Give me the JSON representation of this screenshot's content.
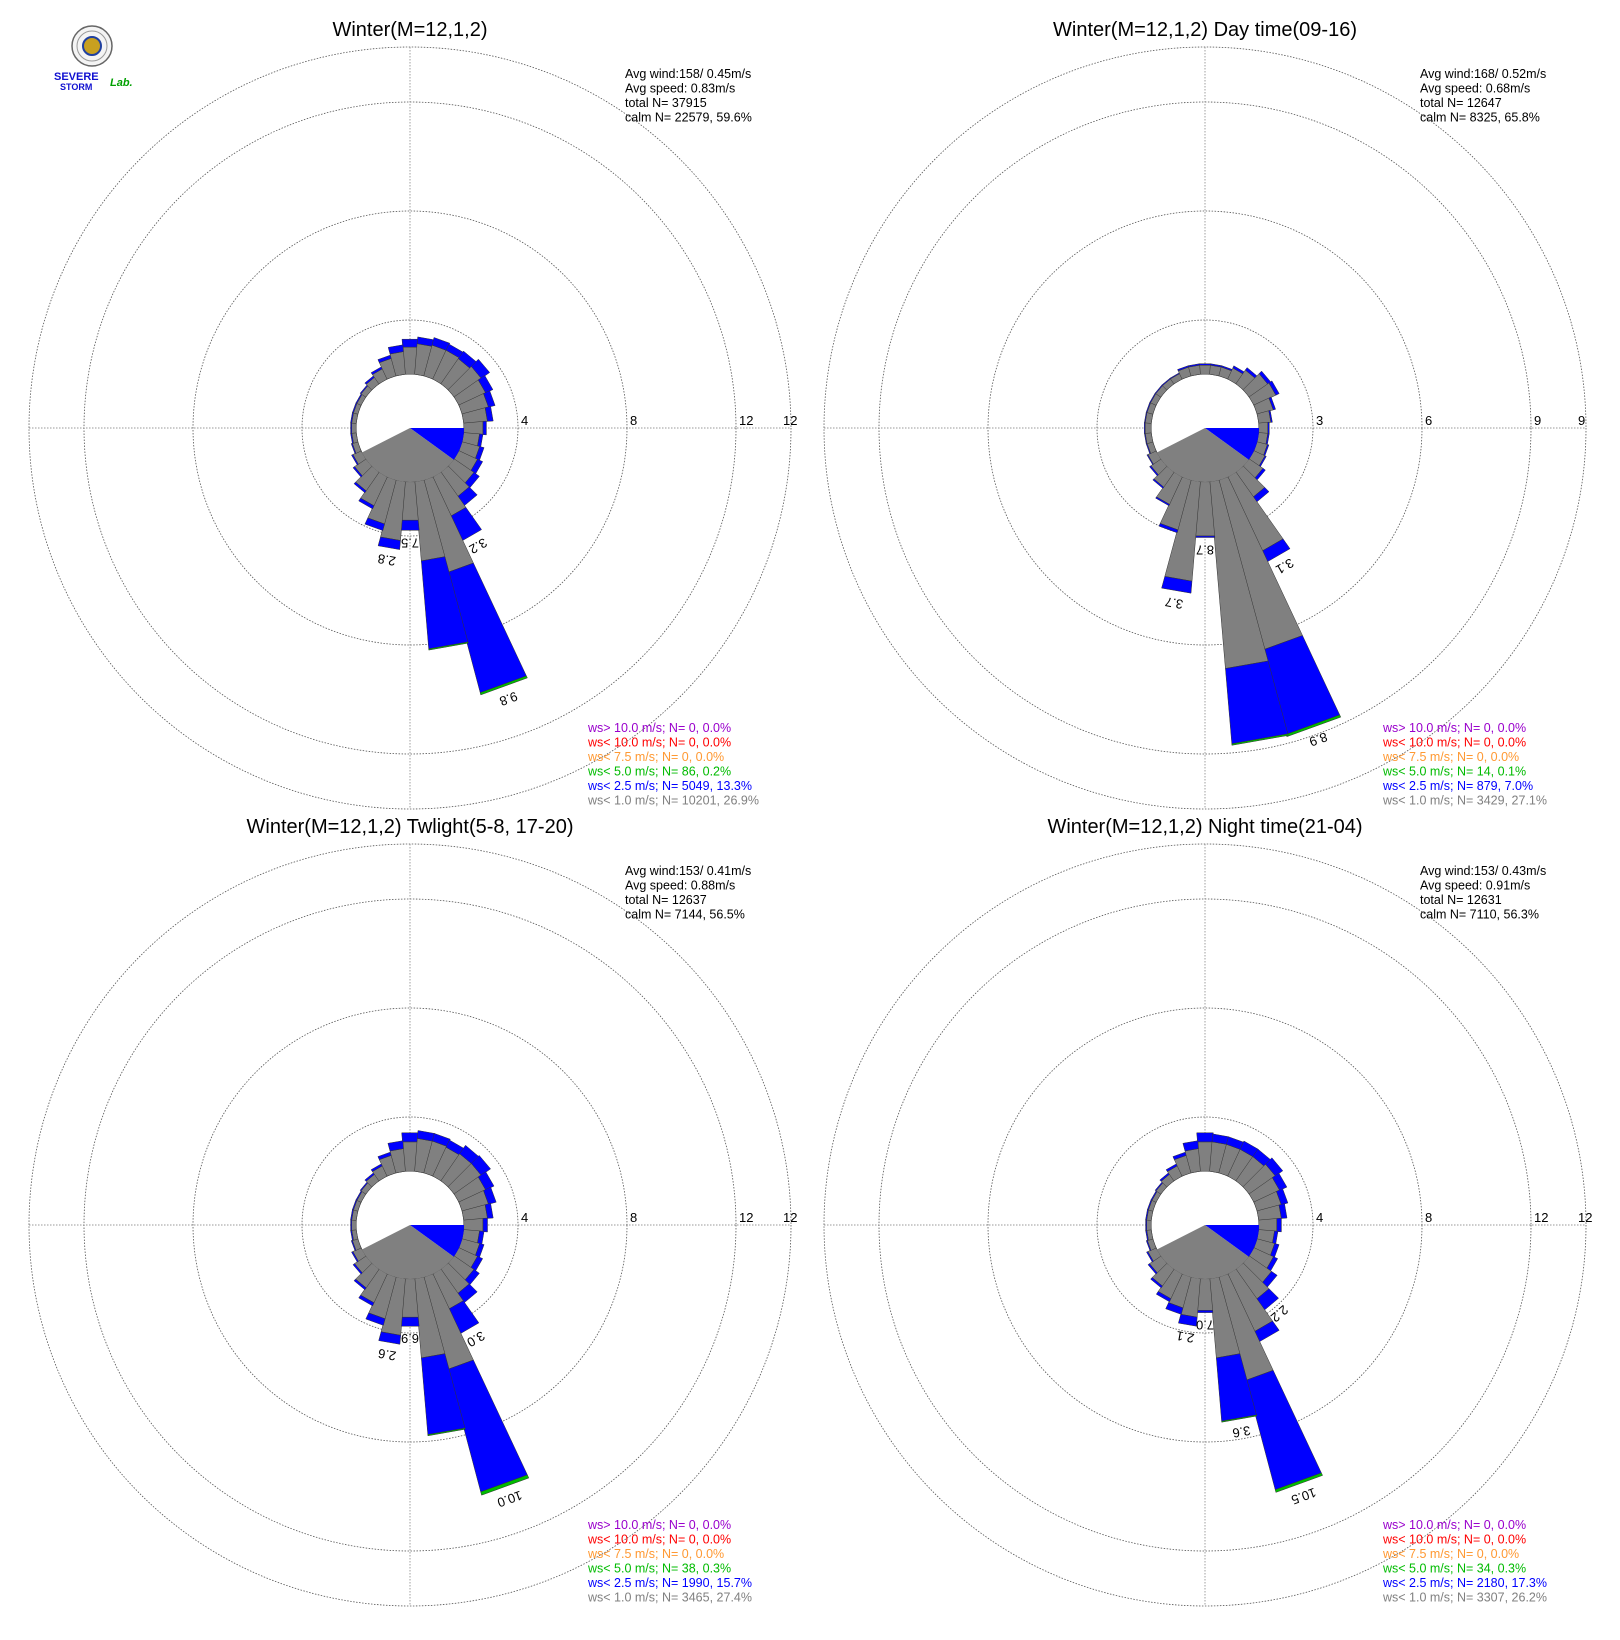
{
  "logo": {
    "text_severe": "SEVERE",
    "text_storm": "STORM",
    "text_lab": "Lab."
  },
  "colors": {
    "ws_gt_10": "#9900cc",
    "ws_lt_10": "#ff0000",
    "ws_lt_7_5": "#ff9933",
    "ws_lt_5": "#00bb00",
    "ws_lt_2_5": "#0000ff",
    "ws_lt_1": "#808080"
  },
  "chart_data": [
    {
      "type": "wind-rose",
      "title": "Winter(M=12,1,2)",
      "rings": [
        "4",
        "8",
        "12"
      ],
      "rmax": 12,
      "stats": [
        "Avg wind:158/ 0.45m/s",
        "Avg speed: 0.83m/s",
        "total N=      37915",
        "calm N=  22579,  59.6%"
      ],
      "legend": [
        "ws> 10.0 m/s; N=      0,  0.0%",
        "ws< 10.0 m/s; N=      0,  0.0%",
        "ws<  7.5 m/s; N=      0,  0.0%",
        "ws<  5.0 m/s; N=     86,  0.2%",
        "ws<  2.5 m/s; N=   5049, 13.3%",
        "ws<  1.0 m/s; N=  10201, 26.9%"
      ],
      "directions_deg": [
        0,
        10,
        20,
        30,
        40,
        50,
        60,
        70,
        80,
        90,
        100,
        110,
        120,
        130,
        140,
        150,
        160,
        170,
        180,
        190,
        200,
        210,
        220,
        230,
        240,
        250,
        260,
        270,
        280,
        290,
        300,
        310,
        320,
        330,
        340,
        350
      ],
      "gray": [
        1.2,
        1.35,
        1.4,
        1.4,
        1.35,
        1.45,
        1.3,
        1.2,
        1.05,
        0.85,
        0.7,
        0.8,
        0.9,
        1.05,
        1.3,
        1.9,
        4.2,
        3.5,
        1.7,
        2.6,
        2.0,
        1.4,
        1.0,
        0.6,
        0.4,
        0.25,
        0.2,
        0.2,
        0.2,
        0.2,
        0.2,
        0.25,
        0.35,
        0.5,
        0.8,
        1.0
      ],
      "blue": [
        0.35,
        0.3,
        0.35,
        0.3,
        0.4,
        0.45,
        0.35,
        0.3,
        0.25,
        0.15,
        0.15,
        0.2,
        0.25,
        0.3,
        0.5,
        1.2,
        5.5,
        3.9,
        0.45,
        0.4,
        0.3,
        0.15,
        0.1,
        0.08,
        0.06,
        0.05,
        0.05,
        0.05,
        0.05,
        0.05,
        0.05,
        0.05,
        0.08,
        0.1,
        0.15,
        0.3
      ],
      "green": [
        0,
        0,
        0,
        0,
        0,
        0,
        0,
        0,
        0,
        0,
        0,
        0,
        0,
        0,
        0,
        0,
        0.1,
        0.05,
        0,
        0,
        0,
        0,
        0,
        0,
        0,
        0,
        0,
        0,
        0,
        0,
        0,
        0,
        0,
        0,
        0,
        0
      ],
      "bar_labels": [
        {
          "dir": 150,
          "text": "3.2"
        },
        {
          "dir": 160,
          "text": "9.8"
        },
        {
          "dir": 180,
          "text": "7.5"
        },
        {
          "dir": 190,
          "text": "2.8"
        }
      ]
    },
    {
      "type": "wind-rose",
      "title": "Winter(M=12,1,2) Day time(09-16)",
      "rings": [
        "3",
        "6",
        "9"
      ],
      "rmax": 9,
      "stats": [
        "Avg wind:168/ 0.52m/s",
        "Avg speed: 0.68m/s",
        "total N=      12647",
        "calm N=  8325,  65.8%"
      ],
      "legend": [
        "ws> 10.0 m/s; N=      0,  0.0%",
        "ws< 10.0 m/s; N=      0,  0.0%",
        "ws<  7.5 m/s; N=      0,  0.0%",
        "ws<  5.0 m/s; N=     14,  0.1%",
        "ws<  2.5 m/s; N=    879,  7.0%",
        "ws<  1.0 m/s; N=   3429, 27.1%"
      ],
      "directions_deg": [
        0,
        10,
        20,
        30,
        40,
        50,
        60,
        70,
        80,
        90,
        100,
        110,
        120,
        130,
        140,
        150,
        160,
        170,
        180,
        190,
        200,
        210,
        220,
        230,
        240,
        250,
        260,
        270,
        280,
        290,
        300,
        310,
        320,
        330,
        340,
        350
      ],
      "gray": [
        0.3,
        0.3,
        0.3,
        0.4,
        0.55,
        0.75,
        0.8,
        0.55,
        0.4,
        0.3,
        0.3,
        0.35,
        0.4,
        0.55,
        1.0,
        2.7,
        5.8,
        6.2,
        1.8,
        3.3,
        1.7,
        1.0,
        0.6,
        0.4,
        0.3,
        0.2,
        0.2,
        0.2,
        0.2,
        0.2,
        0.2,
        0.2,
        0.2,
        0.2,
        0.3,
        0.3
      ],
      "blue": [
        0.05,
        0.05,
        0.05,
        0.08,
        0.1,
        0.12,
        0.12,
        0.08,
        0.05,
        0.05,
        0.05,
        0.05,
        0.05,
        0.1,
        0.2,
        0.4,
        2.9,
        2.5,
        0.05,
        0.4,
        0.1,
        0.05,
        0.05,
        0.05,
        0.03,
        0.03,
        0.03,
        0.03,
        0.03,
        0.03,
        0.03,
        0.03,
        0.03,
        0.03,
        0.05,
        0.05
      ],
      "green": [
        0,
        0,
        0,
        0,
        0,
        0,
        0,
        0,
        0,
        0,
        0,
        0,
        0,
        0,
        0,
        0,
        0.08,
        0.05,
        0,
        0,
        0,
        0,
        0,
        0,
        0,
        0,
        0,
        0,
        0,
        0,
        0,
        0,
        0,
        0,
        0,
        0
      ],
      "bar_labels": [
        {
          "dir": 150,
          "text": "3.1"
        },
        {
          "dir": 160,
          "text": "8.9"
        },
        {
          "dir": 180,
          "text": "8.7"
        },
        {
          "dir": 190,
          "text": "3.7"
        }
      ]
    },
    {
      "type": "wind-rose",
      "title": "Winter(M=12,1,2) Twlight(5-8, 17-20)",
      "rings": [
        "4",
        "8",
        "12"
      ],
      "rmax": 12,
      "stats": [
        "Avg wind:153/ 0.41m/s",
        "Avg speed: 0.88m/s",
        "total N=      12637",
        "calm N=  7144,  56.5%"
      ],
      "legend": [
        "ws> 10.0 m/s; N=      0,  0.0%",
        "ws< 10.0 m/s; N=      0,  0.0%",
        "ws<  7.5 m/s; N=      0,  0.0%",
        "ws<  5.0 m/s; N=     38,  0.3%",
        "ws<  2.5 m/s; N=   1990, 15.7%",
        "ws<  1.0 m/s; N=   3465, 27.4%"
      ],
      "directions_deg": [
        0,
        10,
        20,
        30,
        40,
        50,
        60,
        70,
        80,
        90,
        100,
        110,
        120,
        130,
        140,
        150,
        160,
        170,
        180,
        190,
        200,
        210,
        220,
        230,
        240,
        250,
        260,
        270,
        280,
        290,
        300,
        310,
        320,
        330,
        340,
        350
      ],
      "gray": [
        1.3,
        1.45,
        1.45,
        1.4,
        1.45,
        1.45,
        1.3,
        1.2,
        1.05,
        0.85,
        0.7,
        0.8,
        0.9,
        1.05,
        1.3,
        1.7,
        4.2,
        3.5,
        1.7,
        2.5,
        1.9,
        1.4,
        1.0,
        0.6,
        0.4,
        0.25,
        0.2,
        0.2,
        0.2,
        0.2,
        0.2,
        0.25,
        0.35,
        0.5,
        0.8,
        1.0
      ],
      "blue": [
        0.4,
        0.35,
        0.35,
        0.35,
        0.45,
        0.5,
        0.4,
        0.35,
        0.25,
        0.2,
        0.2,
        0.2,
        0.25,
        0.3,
        0.5,
        1.2,
        5.6,
        3.4,
        0.4,
        0.4,
        0.3,
        0.15,
        0.1,
        0.08,
        0.06,
        0.05,
        0.05,
        0.05,
        0.05,
        0.05,
        0.05,
        0.05,
        0.08,
        0.1,
        0.15,
        0.35
      ],
      "green": [
        0,
        0,
        0,
        0,
        0,
        0,
        0,
        0,
        0,
        0,
        0,
        0,
        0,
        0,
        0,
        0,
        0.15,
        0.05,
        0,
        0,
        0,
        0,
        0,
        0,
        0,
        0,
        0,
        0,
        0,
        0,
        0,
        0,
        0,
        0,
        0,
        0
      ],
      "bar_labels": [
        {
          "dir": 150,
          "text": "3.0"
        },
        {
          "dir": 160,
          "text": "10.0"
        },
        {
          "dir": 180,
          "text": "6.9"
        },
        {
          "dir": 190,
          "text": "2.6"
        }
      ]
    },
    {
      "type": "wind-rose",
      "title": "Winter(M=12,1,2) Night time(21-04)",
      "rings": [
        "4",
        "8",
        "12"
      ],
      "rmax": 12,
      "stats": [
        "Avg wind:153/ 0.43m/s",
        "Avg speed: 0.91m/s",
        "total N=      12631",
        "calm N=  7110,  56.3%"
      ],
      "legend": [
        "ws> 10.0 m/s; N=      0,  0.0%",
        "ws< 10.0 m/s; N=      0,  0.0%",
        "ws<  7.5 m/s; N=      0,  0.0%",
        "ws<  5.0 m/s; N=     34,  0.3%",
        "ws<  2.5 m/s; N=   2180, 17.3%",
        "ws<  1.0 m/s; N=   3307, 26.2%"
      ],
      "directions_deg": [
        0,
        10,
        20,
        30,
        40,
        50,
        60,
        70,
        80,
        90,
        100,
        110,
        120,
        130,
        140,
        150,
        160,
        170,
        180,
        190,
        200,
        210,
        220,
        230,
        240,
        250,
        260,
        270,
        280,
        290,
        300,
        310,
        320,
        330,
        340,
        350
      ],
      "gray": [
        1.3,
        1.3,
        1.3,
        1.3,
        1.3,
        1.4,
        1.25,
        1.1,
        1.0,
        0.8,
        0.7,
        0.8,
        0.95,
        1.2,
        1.6,
        2.8,
        4.7,
        3.5,
        1.4,
        1.7,
        1.4,
        1.2,
        0.9,
        0.6,
        0.4,
        0.25,
        0.2,
        0.2,
        0.2,
        0.2,
        0.2,
        0.25,
        0.35,
        0.5,
        0.8,
        1.0
      ],
      "blue": [
        0.4,
        0.35,
        0.35,
        0.4,
        0.4,
        0.4,
        0.35,
        0.3,
        0.25,
        0.2,
        0.15,
        0.2,
        0.2,
        0.3,
        0.6,
        0.5,
        5.0,
        2.8,
        0.1,
        0.4,
        0.3,
        0.15,
        0.1,
        0.08,
        0.06,
        0.05,
        0.05,
        0.05,
        0.05,
        0.05,
        0.05,
        0.05,
        0.08,
        0.1,
        0.15,
        0.35
      ],
      "green": [
        0,
        0,
        0,
        0,
        0,
        0,
        0,
        0,
        0,
        0,
        0,
        0,
        0,
        0,
        0,
        0,
        0.12,
        0.05,
        0,
        0,
        0,
        0,
        0,
        0,
        0,
        0,
        0,
        0,
        0,
        0,
        0,
        0,
        0,
        0,
        0,
        0
      ],
      "bar_labels": [
        {
          "dir": 140,
          "text": "2.2"
        },
        {
          "dir": 160,
          "text": "10.5"
        },
        {
          "dir": 170,
          "text": "3.6"
        },
        {
          "dir": 180,
          "text": "7.0"
        },
        {
          "dir": 190,
          "text": "2.1"
        }
      ]
    }
  ]
}
